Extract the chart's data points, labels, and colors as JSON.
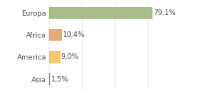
{
  "categories": [
    "Europa",
    "Africa",
    "America",
    "Asia"
  ],
  "values": [
    79.1,
    10.4,
    9.0,
    1.5
  ],
  "labels": [
    "79,1%",
    "10,4%",
    "9,0%",
    "1,5%"
  ],
  "bar_colors": [
    "#a8bc8a",
    "#e8a87c",
    "#f0c96e",
    "#7b9ec8"
  ],
  "background_color": "#ffffff",
  "label_fontsize": 6.5,
  "tick_fontsize": 6.5,
  "bar_height": 0.55,
  "xlim": [
    0,
    100
  ],
  "grid_ticks": [
    0,
    25,
    50,
    75,
    100
  ],
  "grid_color": "#dddddd",
  "text_color": "#555555"
}
